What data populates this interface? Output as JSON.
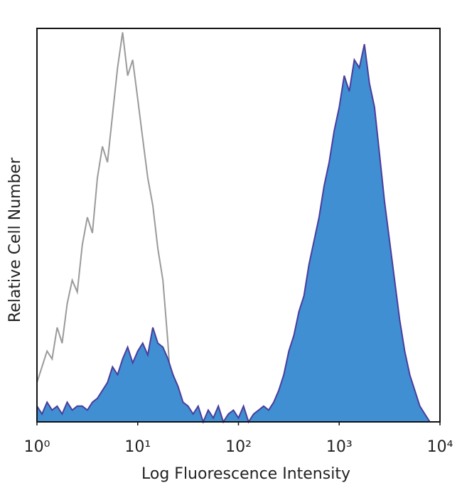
{
  "chart_data": {
    "type": "histogram-overlay",
    "xlabel": "Log Fluorescence Intensity",
    "ylabel": "Relative Cell Number",
    "xscale": "log",
    "xlim": [
      1,
      10000
    ],
    "ylim": [
      0,
      100
    ],
    "xticks": [
      {
        "value": 1,
        "label": "10⁰"
      },
      {
        "value": 10,
        "label": "10¹"
      },
      {
        "value": 100,
        "label": "10²"
      },
      {
        "value": 1000,
        "label": "10³"
      },
      {
        "value": 10000,
        "label": "10⁴"
      }
    ],
    "series": [
      {
        "color": "#9a9a9a",
        "filled": false,
        "x": [
          1,
          1.122,
          1.259,
          1.413,
          1.585,
          1.778,
          1.995,
          2.239,
          2.512,
          2.818,
          3.162,
          3.548,
          3.981,
          4.467,
          5.012,
          5.623,
          6.31,
          7.079,
          7.943,
          8.913,
          10,
          11.22,
          12.59,
          14.13,
          15.85,
          17.78,
          19.95,
          22.39
        ],
        "values": [
          10,
          14,
          18,
          16,
          24,
          20,
          30,
          36,
          33,
          45,
          52,
          48,
          62,
          70,
          66,
          78,
          90,
          99,
          88,
          92,
          82,
          72,
          62,
          55,
          44,
          36,
          20,
          0
        ]
      },
      {
        "color": "#3f8fd2",
        "edgecolor": "#4a3d9c",
        "filled": true,
        "x": [
          1,
          1.122,
          1.259,
          1.413,
          1.585,
          1.778,
          1.995,
          2.239,
          2.512,
          2.818,
          3.162,
          3.548,
          3.981,
          4.467,
          5.012,
          5.623,
          6.31,
          7.079,
          7.943,
          8.913,
          10,
          11.22,
          12.59,
          14.13,
          15.85,
          17.78,
          19.95,
          22.39,
          25.12,
          28.18,
          31.62,
          35.48,
          39.81,
          44.67,
          50.12,
          56.23,
          63.1,
          70.79,
          79.43,
          89.13,
          100,
          112.2,
          125.9,
          141.3,
          158.5,
          177.8,
          199.5,
          223.9,
          251.2,
          281.8,
          316.2,
          354.8,
          398.1,
          446.7,
          501.2,
          562.3,
          631,
          707.9,
          794.3,
          891.3,
          1000,
          1122,
          1259,
          1413,
          1585,
          1778,
          1995,
          2239,
          2512,
          2818,
          3162,
          3548,
          3981,
          4467,
          5012,
          5623,
          6310,
          7079,
          7943
        ],
        "values": [
          4,
          2,
          5,
          3,
          4,
          2,
          5,
          3,
          4,
          4,
          3,
          5,
          6,
          8,
          10,
          14,
          12,
          16,
          19,
          15,
          18,
          20,
          17,
          24,
          20,
          19,
          16,
          12,
          9,
          5,
          4,
          2,
          4,
          0,
          3,
          1,
          4,
          0,
          2,
          3,
          1,
          4,
          0,
          2,
          3,
          4,
          3,
          5,
          8,
          12,
          18,
          22,
          28,
          32,
          40,
          46,
          52,
          60,
          66,
          74,
          80,
          88,
          84,
          92,
          90,
          96,
          86,
          80,
          68,
          56,
          46,
          36,
          26,
          18,
          12,
          8,
          4,
          2,
          0
        ]
      }
    ]
  }
}
